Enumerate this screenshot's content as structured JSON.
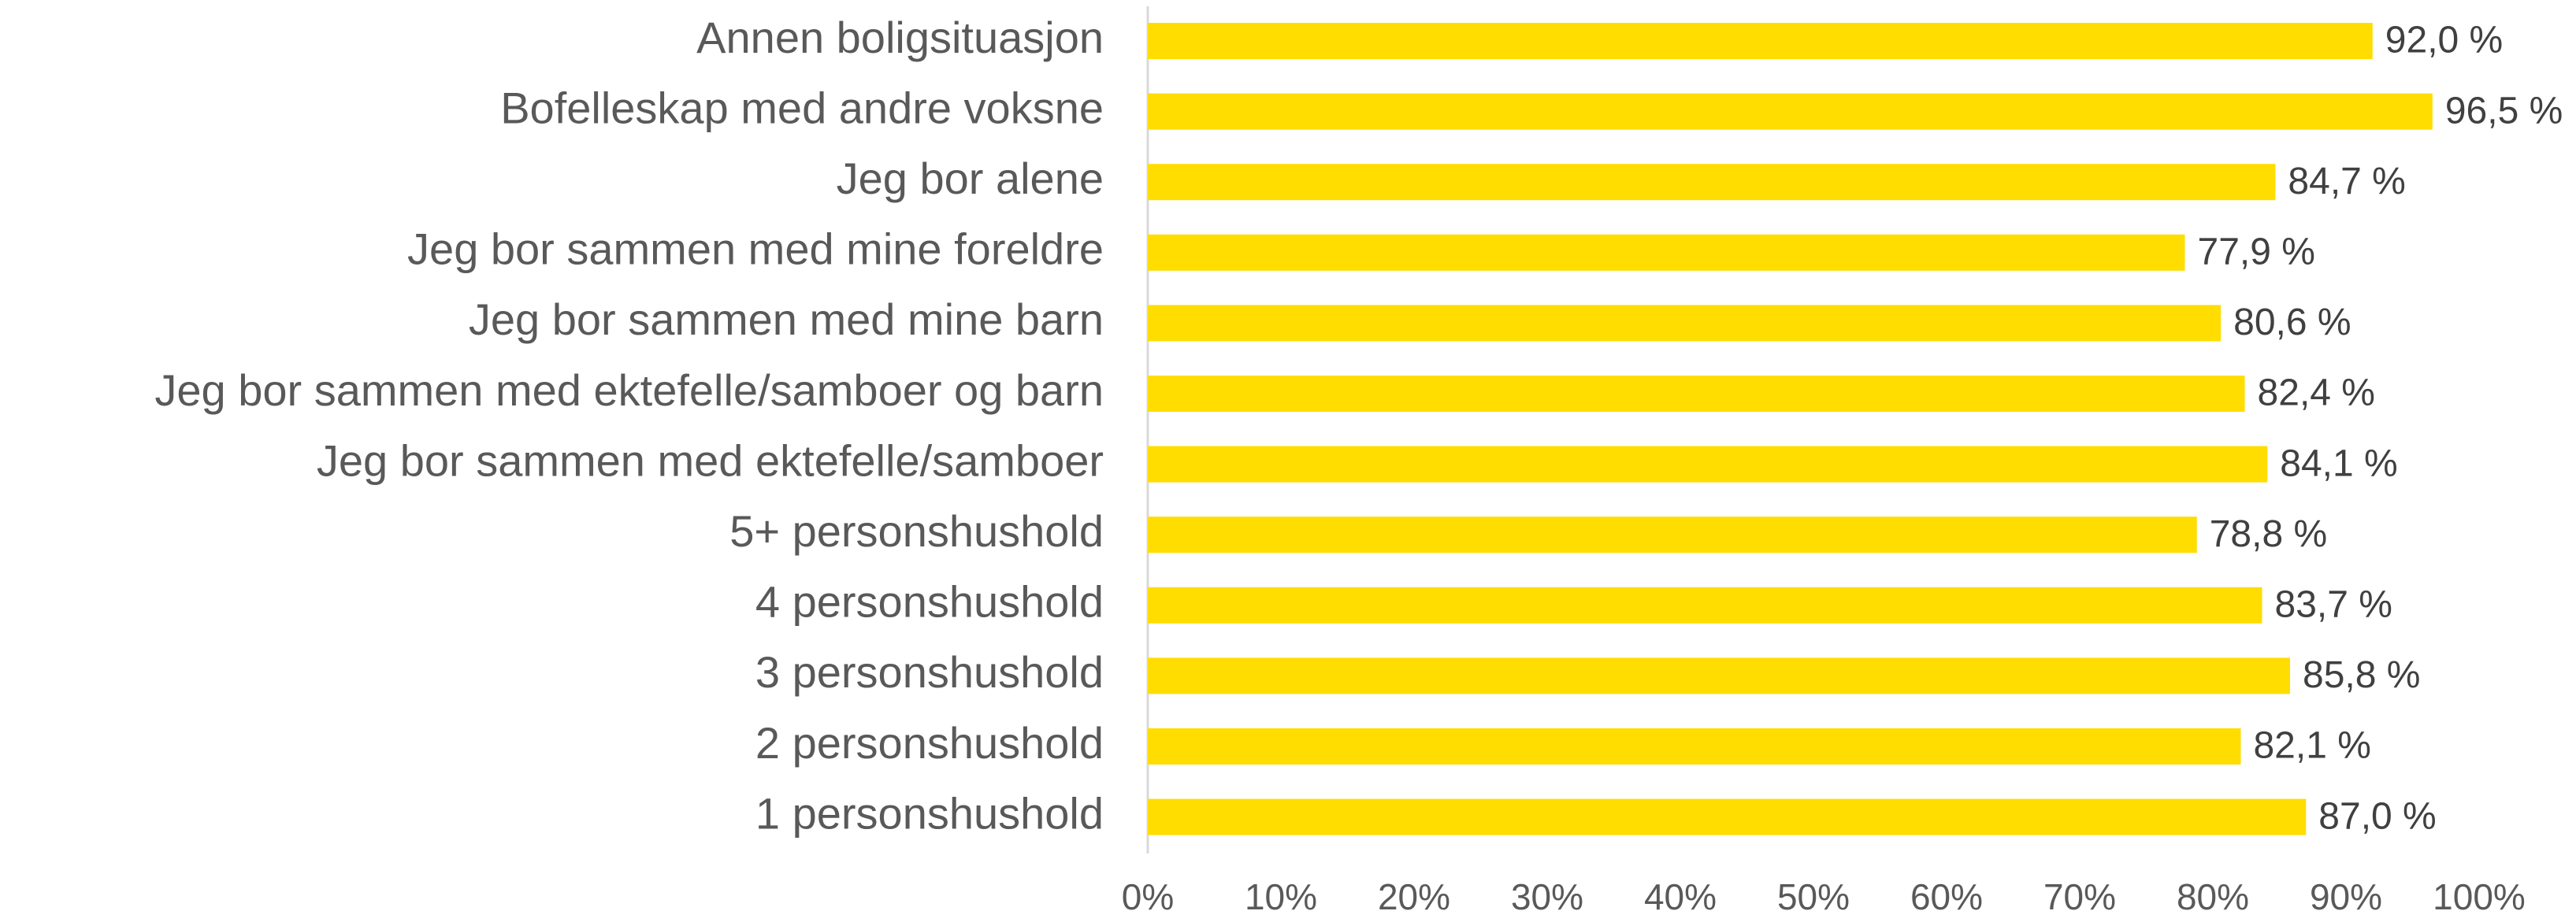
{
  "chart_data": {
    "type": "barh",
    "categories": [
      "Annen boligsituasjon",
      "Bofelleskap med andre voksne",
      "Jeg bor alene",
      "Jeg bor sammen med mine foreldre",
      "Jeg bor sammen med mine barn",
      "Jeg bor sammen med ektefelle/samboer og barn",
      "Jeg bor sammen med ektefelle/samboer",
      "5+ personshushold",
      "4 personshushold",
      "3 personshushold",
      "2 personshushold",
      "1 personshushold"
    ],
    "values": [
      92.0,
      96.5,
      84.7,
      77.9,
      80.6,
      82.4,
      84.1,
      78.8,
      83.7,
      85.8,
      82.1,
      87.0
    ],
    "value_labels": [
      "92,0 %",
      "96,5 %",
      "84,7 %",
      "77,9 %",
      "80,6 %",
      "82,4 %",
      "84,1 %",
      "78,8 %",
      "83,7 %",
      "85,8 %",
      "82,1 %",
      "87,0 %"
    ],
    "color": "#FFDD00",
    "xlim": [
      0,
      100
    ],
    "xticks": [
      {
        "value": 0,
        "label": "0%"
      },
      {
        "value": 10,
        "label": "10%"
      },
      {
        "value": 20,
        "label": "20%"
      },
      {
        "value": 30,
        "label": "30%"
      },
      {
        "value": 40,
        "label": "40%"
      },
      {
        "value": 50,
        "label": "50%"
      },
      {
        "value": 60,
        "label": "60%"
      },
      {
        "value": 70,
        "label": "70%"
      },
      {
        "value": 80,
        "label": "80%"
      },
      {
        "value": 90,
        "label": "90%"
      },
      {
        "value": 100,
        "label": "100%"
      }
    ],
    "grid": false
  }
}
